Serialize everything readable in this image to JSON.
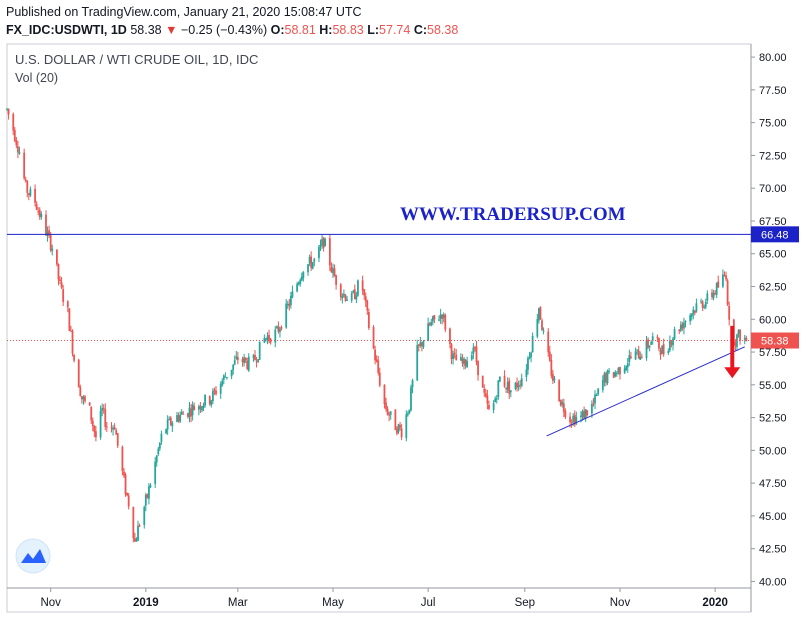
{
  "header": {
    "published": "Published on TradingView.com, January 21, 2020 15:08:47 UTC",
    "symbol": "FX_IDC:USDWTI, 1D",
    "last": "58.38",
    "change_arrow": "▼",
    "change": "−0.25 (−0.43%)",
    "o_label": "O:",
    "o_value": "58.81",
    "h_label": "H:",
    "h_value": "58.83",
    "l_label": "L:",
    "l_value": "57.74",
    "c_label": "C:",
    "c_value": "58.38"
  },
  "chart_data": {
    "type": "candlestick",
    "title": "U.S. DOLLAR / WTI CRUDE OIL, 1D, IDC",
    "indicator": "Vol (20)",
    "watermark": "WWW.TRADERSUP.COM",
    "y_axis": {
      "min": 39.5,
      "max": 81,
      "ticks": [
        "80.00",
        "77.50",
        "75.00",
        "72.50",
        "70.00",
        "67.50",
        "65.00",
        "62.50",
        "60.00",
        "57.50",
        "55.00",
        "52.50",
        "50.00",
        "47.50",
        "45.00",
        "42.50",
        "40.00"
      ],
      "tick_values": [
        80,
        77.5,
        75,
        72.5,
        70,
        67.5,
        65,
        62.5,
        60,
        57.5,
        55,
        52.5,
        50,
        47.5,
        45,
        42.5,
        40
      ]
    },
    "x_axis": {
      "labels": [
        "Nov",
        "2019",
        "Mar",
        "May",
        "Jul",
        "Sep",
        "Nov",
        "2020"
      ],
      "label_dates": [
        "2018-11-01",
        "2019-01-01",
        "2019-03-01",
        "2019-05-01",
        "2019-07-01",
        "2019-09-01",
        "2019-11-01",
        "2020-01-01"
      ],
      "range": [
        "2018-10-04",
        "2020-01-24"
      ]
    },
    "resistance_line": {
      "value": 66.48,
      "label": "66.48",
      "color": "#1a22c8"
    },
    "last_price_line": {
      "value": 58.38,
      "label": "58.38",
      "color": "#ef5350"
    },
    "trendline": {
      "color": "#2a2ad0",
      "points": [
        [
          "2019-09-15",
          51.1
        ],
        [
          "2020-01-20",
          57.9
        ]
      ]
    },
    "arrow": {
      "direction": "down",
      "date": "2020-01-12",
      "from": 59.5,
      "to": 55.5,
      "color": "#e8171f"
    },
    "colors": {
      "up": "#26a69a",
      "down": "#ef5350"
    },
    "price_path": [
      [
        "2018-10-04",
        76.0
      ],
      [
        "2018-10-08",
        74.5
      ],
      [
        "2018-10-12",
        72.8
      ],
      [
        "2018-10-16",
        70.0
      ],
      [
        "2018-10-22",
        69.0
      ],
      [
        "2018-10-28",
        67.0
      ],
      [
        "2018-11-02",
        65.5
      ],
      [
        "2018-11-07",
        62.5
      ],
      [
        "2018-11-12",
        60.5
      ],
      [
        "2018-11-16",
        57.0
      ],
      [
        "2018-11-21",
        54.0
      ],
      [
        "2018-11-26",
        53.0
      ],
      [
        "2018-11-30",
        51.0
      ],
      [
        "2018-12-04",
        53.0
      ],
      [
        "2018-12-08",
        51.5
      ],
      [
        "2018-12-12",
        52.0
      ],
      [
        "2018-12-15",
        49.5
      ],
      [
        "2018-12-19",
        47.0
      ],
      [
        "2018-12-22",
        45.5
      ],
      [
        "2018-12-25",
        43.0
      ],
      [
        "2018-12-28",
        44.5
      ],
      [
        "2019-01-02",
        46.5
      ],
      [
        "2019-01-07",
        49.0
      ],
      [
        "2019-01-12",
        51.5
      ],
      [
        "2019-01-20",
        52.5
      ],
      [
        "2019-01-28",
        53.0
      ],
      [
        "2019-02-04",
        53.5
      ],
      [
        "2019-02-12",
        54.0
      ],
      [
        "2019-02-20",
        55.5
      ],
      [
        "2019-03-01",
        57.0
      ],
      [
        "2019-03-10",
        56.5
      ],
      [
        "2019-03-18",
        58.5
      ],
      [
        "2019-03-26",
        59.0
      ],
      [
        "2019-04-04",
        61.5
      ],
      [
        "2019-04-12",
        64.0
      ],
      [
        "2019-04-20",
        64.5
      ],
      [
        "2019-04-25",
        66.0
      ],
      [
        "2019-05-01",
        63.5
      ],
      [
        "2019-05-07",
        62.0
      ],
      [
        "2019-05-13",
        61.5
      ],
      [
        "2019-05-19",
        63.0
      ],
      [
        "2019-05-24",
        59.5
      ],
      [
        "2019-05-29",
        56.5
      ],
      [
        "2019-06-03",
        53.5
      ],
      [
        "2019-06-09",
        52.0
      ],
      [
        "2019-06-14",
        51.5
      ],
      [
        "2019-06-19",
        53.5
      ],
      [
        "2019-06-24",
        57.5
      ],
      [
        "2019-07-02",
        59.5
      ],
      [
        "2019-07-10",
        60.5
      ],
      [
        "2019-07-17",
        57.0
      ],
      [
        "2019-07-24",
        56.5
      ],
      [
        "2019-07-30",
        58.0
      ],
      [
        "2019-08-05",
        54.5
      ],
      [
        "2019-08-10",
        52.5
      ],
      [
        "2019-08-16",
        55.5
      ],
      [
        "2019-08-24",
        54.5
      ],
      [
        "2019-09-01",
        56.0
      ],
      [
        "2019-09-06",
        58.5
      ],
      [
        "2019-09-10",
        61.0
      ],
      [
        "2019-09-14",
        58.0
      ],
      [
        "2019-09-19",
        55.5
      ],
      [
        "2019-09-25",
        53.5
      ],
      [
        "2019-09-30",
        52.5
      ],
      [
        "2019-10-07",
        52.5
      ],
      [
        "2019-10-15",
        53.5
      ],
      [
        "2019-10-22",
        55.5
      ],
      [
        "2019-10-30",
        56.0
      ],
      [
        "2019-11-07",
        57.0
      ],
      [
        "2019-11-15",
        57.5
      ],
      [
        "2019-11-22",
        58.5
      ],
      [
        "2019-11-29",
        57.5
      ],
      [
        "2019-12-06",
        59.0
      ],
      [
        "2019-12-13",
        60.0
      ],
      [
        "2019-12-20",
        61.0
      ],
      [
        "2019-12-27",
        61.5
      ],
      [
        "2020-01-03",
        62.5
      ],
      [
        "2020-01-08",
        63.5
      ],
      [
        "2020-01-10",
        59.5
      ],
      [
        "2020-01-14",
        58.5
      ],
      [
        "2020-01-17",
        58.8
      ],
      [
        "2020-01-21",
        58.38
      ]
    ]
  },
  "icons": {
    "logo": "tradingview-logo-icon"
  }
}
